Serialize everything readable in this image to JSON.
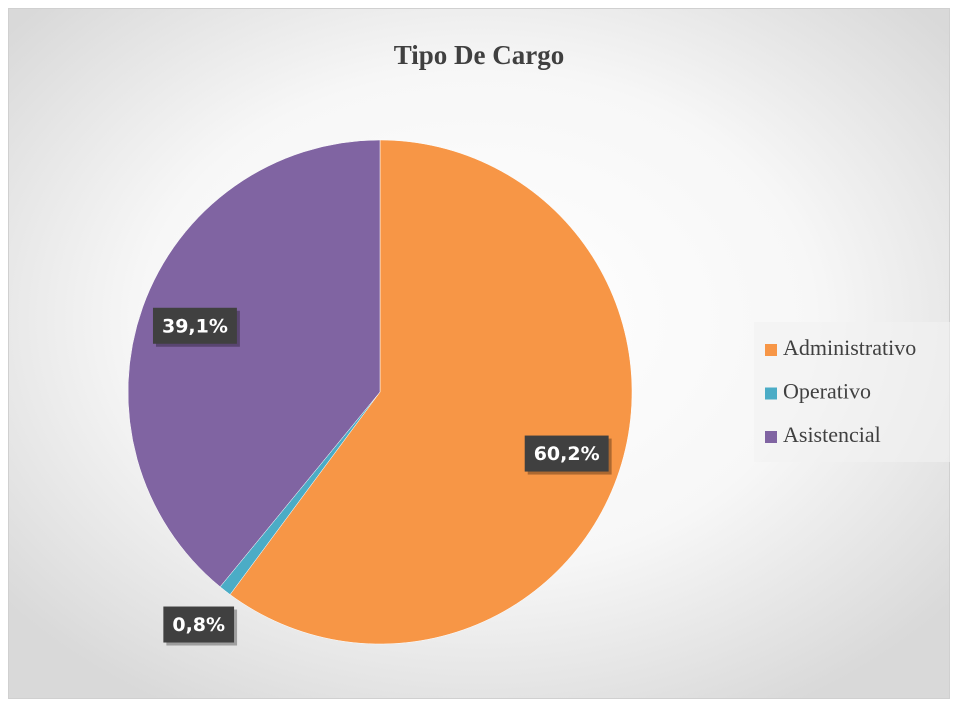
{
  "chart_data": {
    "type": "pie",
    "title": "Tipo De Cargo",
    "categories": [
      "Administrativo",
      "Operativo",
      "Asistencial"
    ],
    "values": [
      60.2,
      0.8,
      39.1
    ],
    "value_labels": [
      "60,2%",
      "0,8%",
      "39,1%"
    ],
    "colors": [
      "#F79646",
      "#4BACC6",
      "#8064A2"
    ],
    "legend": "right"
  }
}
